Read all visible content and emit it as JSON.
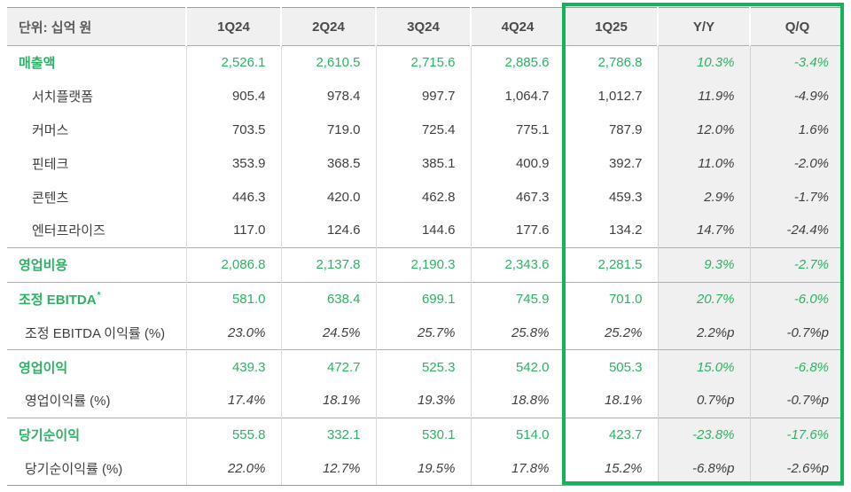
{
  "table": {
    "unit_label": "단위: 십억 원",
    "columns": [
      "1Q24",
      "2Q24",
      "3Q24",
      "4Q24",
      "1Q25",
      "Y/Y",
      "Q/Q"
    ],
    "highlight_columns": [
      "1Q25",
      "Y/Y",
      "Q/Q"
    ],
    "rows": [
      {
        "label": "매출액",
        "sup": "",
        "type": "main",
        "separator": false,
        "values": [
          "2,526.1",
          "2,610.5",
          "2,715.6",
          "2,885.6",
          "2,786.8",
          "10.3%",
          "-3.4%"
        ]
      },
      {
        "label": "서치플랫폼",
        "sup": "",
        "type": "sub",
        "separator": false,
        "values": [
          "905.4",
          "978.4",
          "997.7",
          "1,064.7",
          "1,012.7",
          "11.9%",
          "-4.9%"
        ]
      },
      {
        "label": "커머스",
        "sup": "",
        "type": "sub",
        "separator": false,
        "values": [
          "703.5",
          "719.0",
          "725.4",
          "775.1",
          "787.9",
          "12.0%",
          "1.6%"
        ]
      },
      {
        "label": "핀테크",
        "sup": "",
        "type": "sub",
        "separator": false,
        "values": [
          "353.9",
          "368.5",
          "385.1",
          "400.9",
          "392.7",
          "11.0%",
          "-2.0%"
        ]
      },
      {
        "label": "콘텐츠",
        "sup": "",
        "type": "sub",
        "separator": false,
        "values": [
          "446.3",
          "420.0",
          "462.8",
          "467.3",
          "459.3",
          "2.9%",
          "-1.7%"
        ]
      },
      {
        "label": "엔터프라이즈",
        "sup": "",
        "type": "sub",
        "separator": false,
        "values": [
          "117.0",
          "124.6",
          "144.6",
          "177.6",
          "134.2",
          "14.7%",
          "-24.4%"
        ]
      },
      {
        "label": "영업비용",
        "sup": "",
        "type": "main",
        "separator": true,
        "values": [
          "2,086.8",
          "2,137.8",
          "2,190.3",
          "2,343.6",
          "2,281.5",
          "9.3%",
          "-2.7%"
        ]
      },
      {
        "label": "조정 EBITDA",
        "sup": "*",
        "type": "main",
        "separator": true,
        "values": [
          "581.0",
          "638.4",
          "699.1",
          "745.9",
          "701.0",
          "20.7%",
          "-6.0%"
        ]
      },
      {
        "label": "조정 EBITDA 이익률 (%)",
        "sup": "",
        "type": "ratio",
        "separator": false,
        "values": [
          "23.0%",
          "24.5%",
          "25.7%",
          "25.8%",
          "25.2%",
          "2.2%p",
          "-0.7%p"
        ]
      },
      {
        "label": "영업이익",
        "sup": "",
        "type": "main",
        "separator": true,
        "values": [
          "439.3",
          "472.7",
          "525.3",
          "542.0",
          "505.3",
          "15.0%",
          "-6.8%"
        ]
      },
      {
        "label": "영업이익률 (%)",
        "sup": "",
        "type": "ratio",
        "separator": false,
        "values": [
          "17.4%",
          "18.1%",
          "19.3%",
          "18.8%",
          "18.1%",
          "0.7%p",
          "-0.7%p"
        ]
      },
      {
        "label": "당기순이익",
        "sup": "",
        "type": "main",
        "separator": true,
        "values": [
          "555.8",
          "332.1",
          "530.1",
          "514.0",
          "423.7",
          "-23.8%",
          "-17.6%"
        ]
      },
      {
        "label": "당기순이익률 (%)",
        "sup": "",
        "type": "ratio",
        "separator": false,
        "values": [
          "22.0%",
          "12.7%",
          "19.5%",
          "17.8%",
          "15.2%",
          "-6.8%p",
          "-2.6%p"
        ]
      }
    ]
  },
  "colors": {
    "green_text": "#2bb363",
    "green_border": "#14b25a",
    "header_bg": "#f0f0f0",
    "shade_bg": "#f0f0f0",
    "dark_text": "#3f3f3f"
  }
}
